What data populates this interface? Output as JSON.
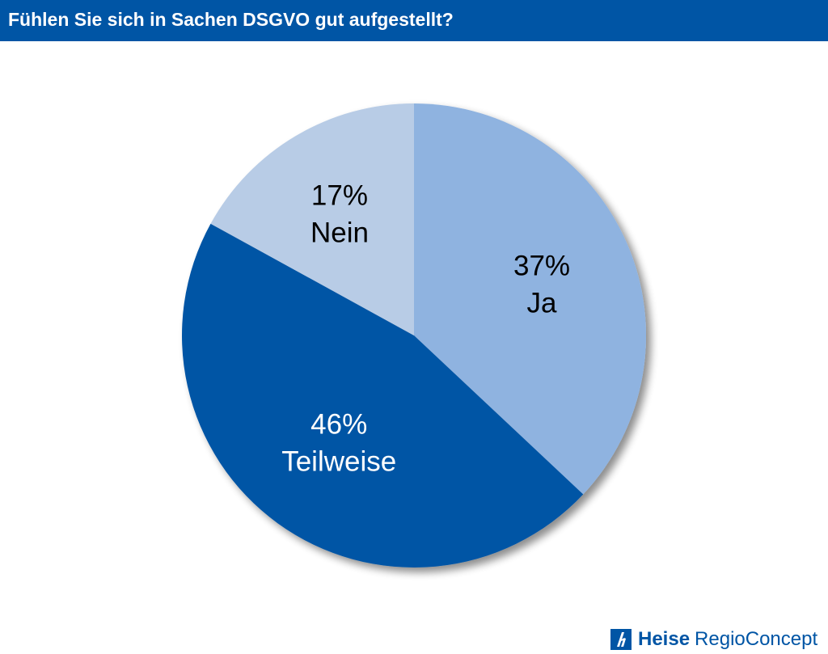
{
  "colors": {
    "header_bg": "#0055a5",
    "header_text": "#ffffff",
    "brand": "#0055a5"
  },
  "chart_data": {
    "type": "pie",
    "title": "Fühlen Sie sich in Sachen DSGVO gut aufgestellt?",
    "slices": [
      {
        "label": "Ja",
        "value_label": "37%",
        "value": 37,
        "color": "#8fb3e0",
        "text_color": "#000000"
      },
      {
        "label": "Teilweise",
        "value_label": "46%",
        "value": 46,
        "color": "#0055a5",
        "text_color": "#ffffff"
      },
      {
        "label": "Nein",
        "value_label": "17%",
        "value": 17,
        "color": "#b8cce6",
        "text_color": "#000000"
      }
    ],
    "start": "12 o'clock",
    "direction": "clockwise",
    "legend": "none"
  },
  "brand": {
    "bold": "Heise",
    "regular": "RegioConcept",
    "logo_icon": "heise-logo-icon"
  }
}
